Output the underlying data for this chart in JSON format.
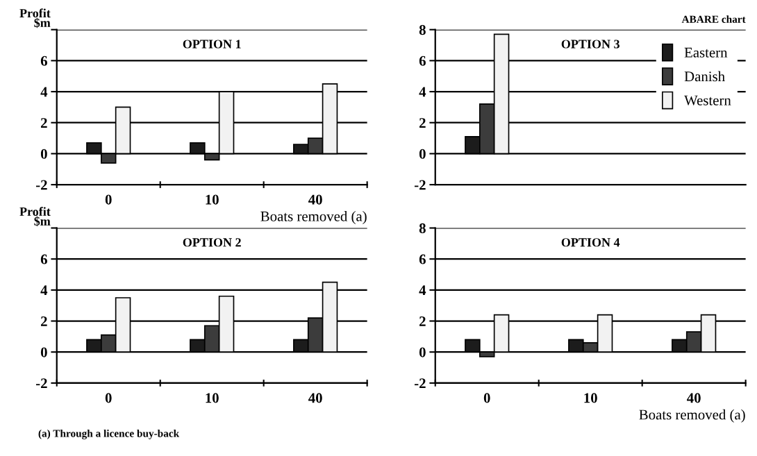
{
  "chart_data": [
    {
      "type": "bar",
      "title": "OPTION 1",
      "ylabel": "Profit\n$m",
      "xlabel": "Boats removed (a)",
      "categories": [
        "0",
        "10",
        "40"
      ],
      "ylim": [
        -2,
        8
      ],
      "yticks": [
        {
          "value": 8,
          "label": null
        },
        6,
        4,
        2,
        0,
        -2
      ],
      "grid": "y",
      "legend": false,
      "series": [
        {
          "color": "#1c1c1c",
          "values": [
            0.7,
            0.7,
            0.6
          ]
        },
        {
          "color": "#3c3c3c",
          "values": [
            -0.6,
            -0.4,
            1.0
          ]
        },
        {
          "color": "#f2f2f2",
          "values": [
            3.0,
            4.0,
            4.5
          ]
        }
      ]
    },
    {
      "type": "bar",
      "title": "OPTION 2",
      "ylabel": "Profit\n$m",
      "categories": [
        "0",
        "10",
        "40"
      ],
      "ylim": [
        -2,
        8
      ],
      "yticks": [
        {
          "value": 8,
          "label": null
        },
        6,
        4,
        2,
        0,
        -2
      ],
      "grid": "y",
      "legend": false,
      "annotations": [
        "(a) Through a licence buy-back"
      ],
      "series": [
        {
          "color": "#1c1c1c",
          "values": [
            0.8,
            0.8,
            0.8
          ]
        },
        {
          "color": "#3c3c3c",
          "values": [
            1.1,
            1.7,
            2.2
          ]
        },
        {
          "color": "#f2f2f2",
          "values": [
            3.5,
            3.6,
            4.5
          ]
        }
      ]
    },
    {
      "type": "bar",
      "title": "OPTION 3",
      "categories": [
        "0",
        "10",
        "40"
      ],
      "ylim": [
        -2,
        8
      ],
      "yticks": [
        8,
        6,
        4,
        2,
        0,
        -2
      ],
      "grid": "y",
      "legend": "top right",
      "tick_labels": "y",
      "annotations": [
        "ABARE chart"
      ],
      "series": [
        {
          "name": "Eastern",
          "color": "#1c1c1c",
          "values": [
            1.1,
            null,
            null
          ]
        },
        {
          "name": "Danish",
          "color": "#3c3c3c",
          "values": [
            3.2,
            null,
            null
          ]
        },
        {
          "name": "Western",
          "color": "#f2f2f2",
          "values": [
            7.7,
            null,
            null
          ]
        }
      ]
    },
    {
      "type": "bar",
      "title": "OPTION 4",
      "xlabel": "Boats removed (a)",
      "categories": [
        "0",
        "10",
        "40"
      ],
      "ylim": [
        -2,
        8
      ],
      "yticks": [
        8,
        6,
        4,
        2,
        0,
        -2
      ],
      "grid": "y",
      "legend": false,
      "series": [
        {
          "color": "#1c1c1c",
          "values": [
            0.8,
            0.8,
            0.8
          ]
        },
        {
          "color": "#3c3c3c",
          "values": [
            -0.3,
            0.6,
            1.3
          ]
        },
        {
          "color": "#f2f2f2",
          "values": [
            2.4,
            2.4,
            2.4
          ]
        }
      ]
    }
  ]
}
